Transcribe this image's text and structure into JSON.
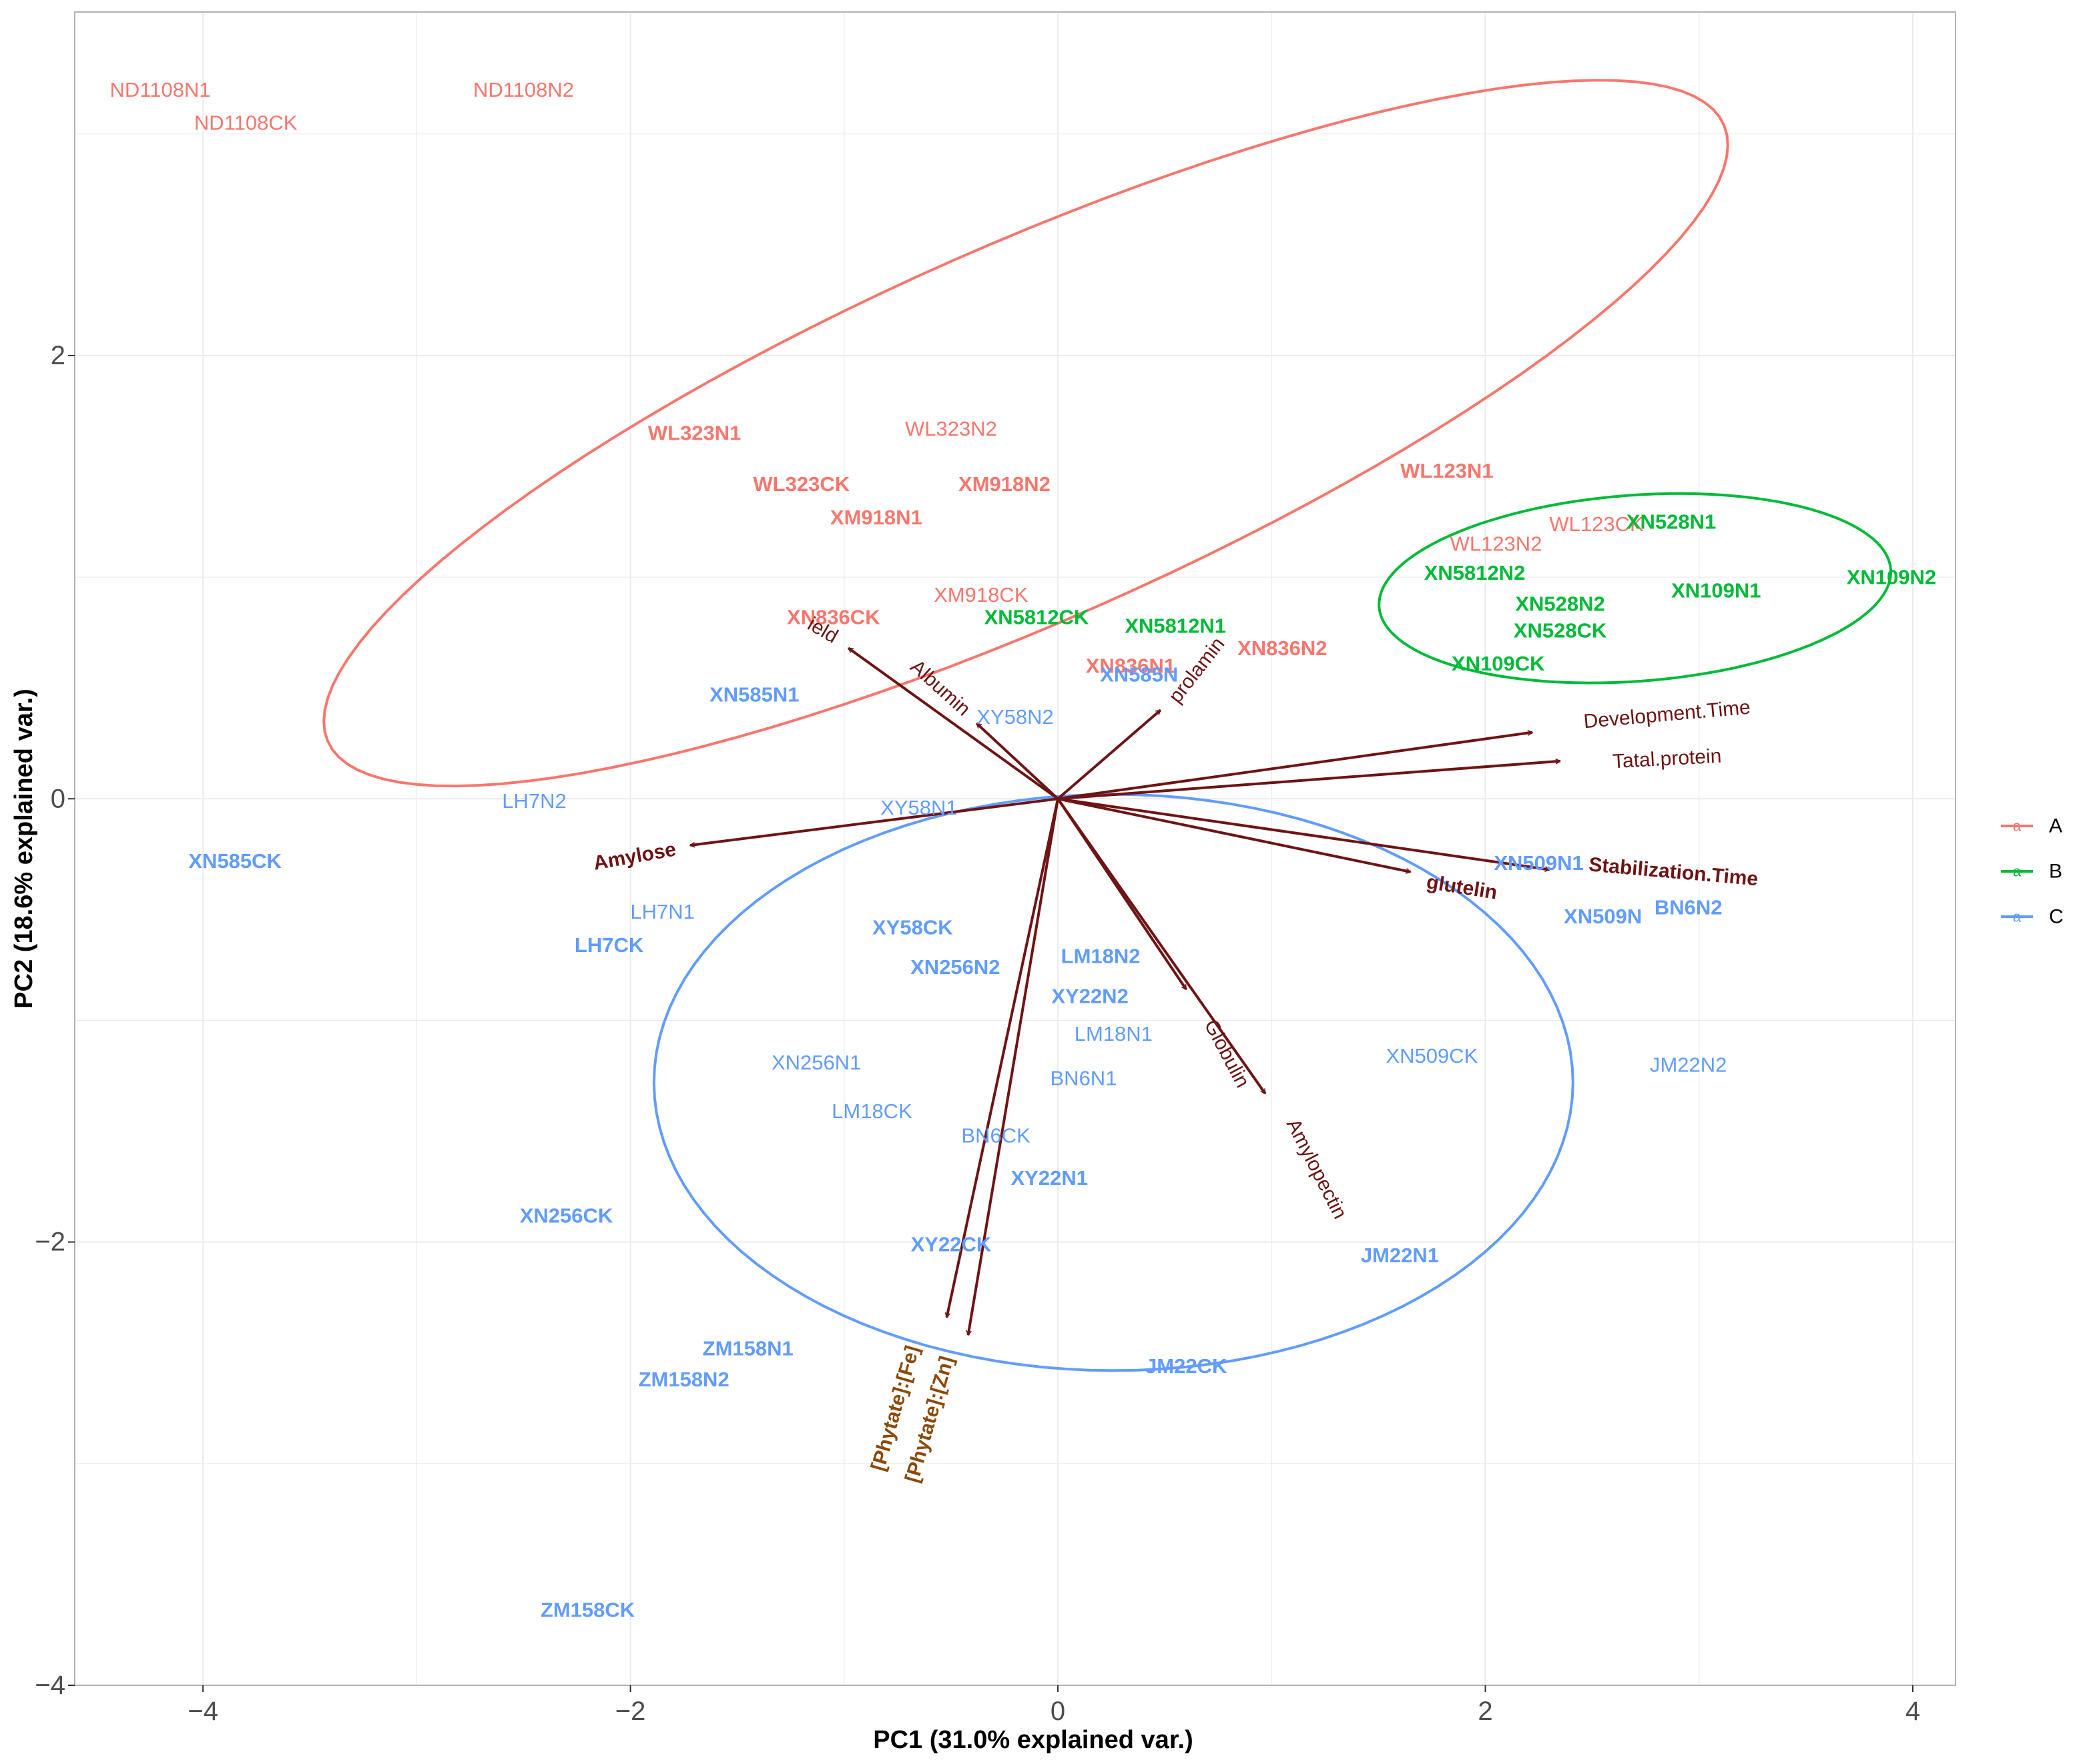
{
  "chart_data": {
    "type": "scatter",
    "subtype": "pca-biplot",
    "xlabel": "PC1 (31.0% explained var.)",
    "ylabel": "PC2 (18.6% explained var.)",
    "xlim": [
      -4.6,
      4.2
    ],
    "ylim": [
      -4.0,
      3.55
    ],
    "x_ticks": [
      -4,
      -2,
      0,
      2,
      4
    ],
    "x_tick_labels": [
      "−4",
      "−2",
      "0",
      "2",
      "4"
    ],
    "y_ticks": [
      -4,
      -2,
      0,
      2
    ],
    "y_tick_labels": [
      "−4",
      "−2",
      "0",
      "2"
    ],
    "grid": true,
    "legend_position": "right",
    "groups": [
      {
        "name": "A",
        "color": "#F8766D",
        "ellipse": {
          "cx": -0.15,
          "cy": 1.65,
          "rx": 3.55,
          "ry": 0.85,
          "angle_deg": 23
        }
      },
      {
        "name": "B",
        "color": "#00BA38",
        "ellipse": {
          "cx": 2.7,
          "cy": 0.95,
          "rx": 1.2,
          "ry": 0.42,
          "angle_deg": 4
        }
      },
      {
        "name": "C",
        "color": "#619CFF",
        "ellipse": {
          "cx": 0.26,
          "cy": -1.28,
          "rx": 2.15,
          "ry": 1.3,
          "angle_deg": 0
        }
      }
    ],
    "points": [
      {
        "label": "ND1108N1",
        "x": -4.2,
        "y": 3.2,
        "group": "A"
      },
      {
        "label": "ND1108N2",
        "x": -2.5,
        "y": 3.2,
        "group": "A"
      },
      {
        "label": "ND1108CK",
        "x": -3.8,
        "y": 3.05,
        "group": "A"
      },
      {
        "label": "WL323N1",
        "x": -1.7,
        "y": 1.65,
        "group": "A"
      },
      {
        "label": "WL323N2",
        "x": -0.5,
        "y": 1.67,
        "group": "A"
      },
      {
        "label": "WL323CK",
        "x": -1.2,
        "y": 1.42,
        "group": "A"
      },
      {
        "label": "XM918N2",
        "x": -0.25,
        "y": 1.42,
        "group": "A"
      },
      {
        "label": "XM918N1",
        "x": -0.85,
        "y": 1.27,
        "group": "A"
      },
      {
        "label": "XM918CK",
        "x": -0.36,
        "y": 0.92,
        "group": "A"
      },
      {
        "label": "XN836CK",
        "x": -1.05,
        "y": 0.82,
        "group": "A"
      },
      {
        "label": "XN836N1",
        "x": 0.34,
        "y": 0.6,
        "group": "A"
      },
      {
        "label": "XN836N2",
        "x": 1.05,
        "y": 0.68,
        "group": "A"
      },
      {
        "label": "WL123N1",
        "x": 1.82,
        "y": 1.48,
        "group": "A"
      },
      {
        "label": "WL123CK",
        "x": 2.52,
        "y": 1.24,
        "group": "A"
      },
      {
        "label": "WL123N2",
        "x": 2.05,
        "y": 1.15,
        "group": "A"
      },
      {
        "label": "XN528N1",
        "x": 2.87,
        "y": 1.25,
        "group": "B"
      },
      {
        "label": "XN5812N2",
        "x": 1.95,
        "y": 1.02,
        "group": "B"
      },
      {
        "label": "XN109N1",
        "x": 3.08,
        "y": 0.94,
        "group": "B"
      },
      {
        "label": "XN109N2",
        "x": 3.9,
        "y": 1.0,
        "group": "B"
      },
      {
        "label": "XN528N2",
        "x": 2.35,
        "y": 0.88,
        "group": "B"
      },
      {
        "label": "XN528CK",
        "x": 2.35,
        "y": 0.76,
        "group": "B"
      },
      {
        "label": "XN109CK",
        "x": 2.06,
        "y": 0.61,
        "group": "B"
      },
      {
        "label": "XN5812CK",
        "x": -0.1,
        "y": 0.82,
        "group": "B"
      },
      {
        "label": "XN5812N1",
        "x": 0.55,
        "y": 0.78,
        "group": "B"
      },
      {
        "label": "XN585N1",
        "x": -1.42,
        "y": 0.47,
        "group": "C"
      },
      {
        "label": "XN585N",
        "x": 0.38,
        "y": 0.56,
        "group": "C"
      },
      {
        "label": "XY58N2",
        "x": -0.2,
        "y": 0.37,
        "group": "C"
      },
      {
        "label": "LH7N2",
        "x": -2.45,
        "y": -0.01,
        "group": "C"
      },
      {
        "label": "XY58N1",
        "x": -0.65,
        "y": -0.04,
        "group": "C"
      },
      {
        "label": "XN585CK",
        "x": -3.85,
        "y": -0.28,
        "group": "C"
      },
      {
        "label": "XN509N1",
        "x": 2.25,
        "y": -0.29,
        "group": "C"
      },
      {
        "label": "LH7N1",
        "x": -1.85,
        "y": -0.51,
        "group": "C"
      },
      {
        "label": "XN509N",
        "x": 2.55,
        "y": -0.53,
        "group": "C"
      },
      {
        "label": "BN6N2",
        "x": 2.95,
        "y": -0.49,
        "group": "C"
      },
      {
        "label": "LH7CK",
        "x": -2.1,
        "y": -0.66,
        "group": "C"
      },
      {
        "label": "XY58CK",
        "x": -0.68,
        "y": -0.58,
        "group": "C"
      },
      {
        "label": "XN256N2",
        "x": -0.48,
        "y": -0.76,
        "group": "C"
      },
      {
        "label": "LM18N2",
        "x": 0.2,
        "y": -0.71,
        "group": "C"
      },
      {
        "label": "XY22N2",
        "x": 0.15,
        "y": -0.89,
        "group": "C"
      },
      {
        "label": "LM18N1",
        "x": 0.26,
        "y": -1.06,
        "group": "C"
      },
      {
        "label": "XN509CK",
        "x": 1.75,
        "y": -1.16,
        "group": "C"
      },
      {
        "label": "JM22N2",
        "x": 2.95,
        "y": -1.2,
        "group": "C"
      },
      {
        "label": "XN256N1",
        "x": -1.13,
        "y": -1.19,
        "group": "C"
      },
      {
        "label": "BN6N1",
        "x": 0.12,
        "y": -1.26,
        "group": "C"
      },
      {
        "label": "LM18CK",
        "x": -0.87,
        "y": -1.41,
        "group": "C"
      },
      {
        "label": "BN6CK",
        "x": -0.29,
        "y": -1.52,
        "group": "C"
      },
      {
        "label": "XY22N1",
        "x": -0.04,
        "y": -1.71,
        "group": "C"
      },
      {
        "label": "XN256CK",
        "x": -2.3,
        "y": -1.88,
        "group": "C"
      },
      {
        "label": "XY22CK",
        "x": -0.5,
        "y": -2.01,
        "group": "C"
      },
      {
        "label": "JM22N1",
        "x": 1.6,
        "y": -2.06,
        "group": "C"
      },
      {
        "label": "ZM158N1",
        "x": -1.45,
        "y": -2.48,
        "group": "C"
      },
      {
        "label": "ZM158N2",
        "x": -1.75,
        "y": -2.62,
        "group": "C"
      },
      {
        "label": "JM22CK",
        "x": 0.6,
        "y": -2.56,
        "group": "C"
      },
      {
        "label": "ZM158CK",
        "x": -2.2,
        "y": -3.66,
        "group": "C"
      }
    ],
    "loadings": [
      {
        "label": "Yield",
        "shown": "ield",
        "x": -0.98,
        "y": 0.68,
        "lx": -1.1,
        "ly": 0.76,
        "rot": 30,
        "color": "#6E1414"
      },
      {
        "label": "Albumin",
        "x": -0.38,
        "y": 0.34,
        "lx": -0.55,
        "ly": 0.5,
        "rot": 42,
        "color": "#6E1414"
      },
      {
        "label": "prolamin",
        "x": 0.48,
        "y": 0.4,
        "lx": 0.65,
        "ly": 0.58,
        "rot": -52,
        "color": "#6E1414"
      },
      {
        "label": "Development.Time",
        "x": 2.22,
        "y": 0.3,
        "lx": 2.85,
        "ly": 0.38,
        "rot": -5,
        "color": "#6E1414"
      },
      {
        "label": "Tatal.protein",
        "x": 2.35,
        "y": 0.17,
        "lx": 2.85,
        "ly": 0.18,
        "rot": -3,
        "color": "#6E1414"
      },
      {
        "label": "Amylose",
        "x": -1.72,
        "y": -0.21,
        "lx": -1.98,
        "ly": -0.26,
        "rot": -10,
        "color": "#6E1414"
      },
      {
        "label": "Stabilization.Time",
        "x": 2.3,
        "y": -0.32,
        "lx": 2.88,
        "ly": -0.33,
        "rot": 5,
        "color": "#6E1414"
      },
      {
        "label": "glutelin",
        "x": 1.65,
        "y": -0.33,
        "lx": 1.89,
        "ly": -0.4,
        "rot": 9,
        "color": "#6E1414"
      },
      {
        "label": "Globulin",
        "x": 0.6,
        "y": -0.86,
        "lx": 0.79,
        "ly": -1.15,
        "rot": 62,
        "color": "#6E1414"
      },
      {
        "label": "Amylopectin",
        "x": 0.97,
        "y": -1.33,
        "lx": 1.21,
        "ly": -1.67,
        "rot": 63,
        "color": "#6E1414"
      },
      {
        "label": "[Phytate]:[Fe]",
        "x": -0.52,
        "y": -2.34,
        "lx": -0.76,
        "ly": -2.75,
        "rot": -74,
        "color": "#8B4A0A"
      },
      {
        "label": "[Phytate]:[Zn]",
        "x": -0.42,
        "y": -2.42,
        "lx": -0.6,
        "ly": -2.8,
        "rot": -74,
        "color": "#8B4A0A"
      }
    ],
    "arrow_color": "#6E1414"
  },
  "legend": {
    "symbol": "a",
    "items": [
      {
        "label": "A",
        "color": "#F8766D"
      },
      {
        "label": "B",
        "color": "#00BA38"
      },
      {
        "label": "C",
        "color": "#619CFF"
      }
    ]
  }
}
